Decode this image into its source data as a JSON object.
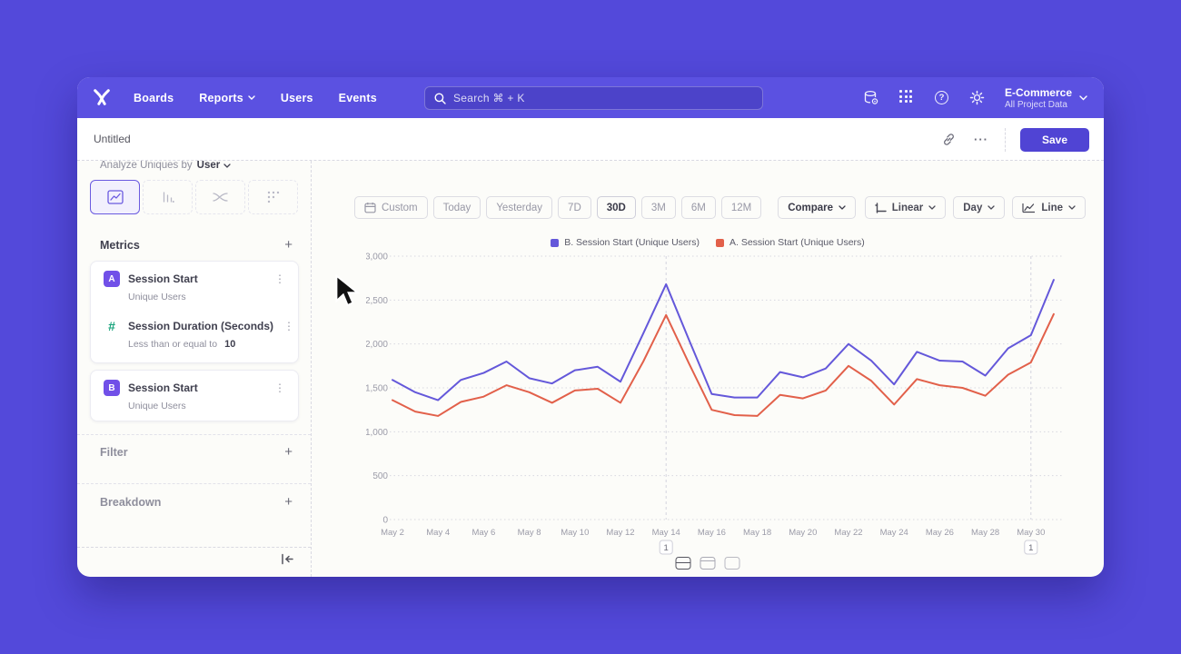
{
  "nav": {
    "items": [
      "Boards",
      "Reports",
      "Users",
      "Events"
    ],
    "search_placeholder": "Search   ⌘ + K",
    "project": {
      "name": "E-Commerce",
      "subtitle": "All Project Data"
    }
  },
  "titlebar": {
    "title": "Untitled",
    "save_label": "Save",
    "more_label": "···"
  },
  "sidebar": {
    "analyze_label": "Analyze Uniques by",
    "analyze_value": "User",
    "metrics_header": "Metrics",
    "cards": [
      {
        "rows": [
          {
            "badge": "A",
            "title": "Session Start",
            "subtitle": "Unique Users",
            "subtitle_value": ""
          },
          {
            "badge": "#",
            "title": "Session Duration (Seconds)",
            "subtitle": "Less than or equal to",
            "subtitle_value": "10"
          }
        ]
      },
      {
        "rows": [
          {
            "badge": "B",
            "title": "Session Start",
            "subtitle": "Unique Users",
            "subtitle_value": ""
          }
        ]
      }
    ],
    "filter_label": "Filter",
    "breakdown_label": "Breakdown"
  },
  "toolbar": {
    "ranges": [
      "Custom",
      "Today",
      "Yesterday",
      "7D",
      "30D",
      "3M",
      "6M",
      "12M"
    ],
    "active_range": "30D",
    "compare_label": "Compare",
    "linear_label": "Linear",
    "day_label": "Day",
    "line_label": "Line"
  },
  "chart_data": {
    "type": "line",
    "title": "",
    "xlabel": "",
    "ylabel": "",
    "ylim": [
      0,
      3000
    ],
    "yticks": [
      0,
      500,
      1000,
      1500,
      2000,
      2500,
      3000
    ],
    "ytick_labels": [
      "0",
      "500",
      "1,000",
      "1,500",
      "2,000",
      "2,500",
      "3,000"
    ],
    "x": [
      "May 2",
      "May 3",
      "May 4",
      "May 5",
      "May 6",
      "May 7",
      "May 8",
      "May 9",
      "May 10",
      "May 11",
      "May 12",
      "May 13",
      "May 14",
      "May 15",
      "May 16",
      "May 17",
      "May 18",
      "May 19",
      "May 20",
      "May 21",
      "May 22",
      "May 23",
      "May 24",
      "May 25",
      "May 26",
      "May 27",
      "May 28",
      "May 29",
      "May 30",
      "May 31"
    ],
    "x_tick_every": 2,
    "grid": "horizontal-dotted",
    "legend_position": "top",
    "series": [
      {
        "name": "B. Session Start (Unique Users)",
        "color": "#6458da",
        "values": [
          1590,
          1450,
          1360,
          1590,
          1670,
          1800,
          1610,
          1550,
          1700,
          1740,
          1570,
          2120,
          2680,
          2050,
          1430,
          1390,
          1390,
          1680,
          1620,
          1720,
          2000,
          1810,
          1540,
          1910,
          1810,
          1800,
          1640,
          1950,
          2100,
          2730
        ]
      },
      {
        "name": "A. Session Start (Unique Users)",
        "color": "#e2604a",
        "values": [
          1360,
          1230,
          1180,
          1340,
          1400,
          1530,
          1450,
          1330,
          1470,
          1490,
          1330,
          1800,
          2330,
          1780,
          1250,
          1190,
          1180,
          1420,
          1380,
          1470,
          1750,
          1580,
          1310,
          1600,
          1530,
          1500,
          1410,
          1650,
          1790,
          2340
        ]
      }
    ],
    "annotations": [
      {
        "x_index": 12,
        "label": "1"
      },
      {
        "x_index": 28,
        "label": "1"
      }
    ]
  }
}
